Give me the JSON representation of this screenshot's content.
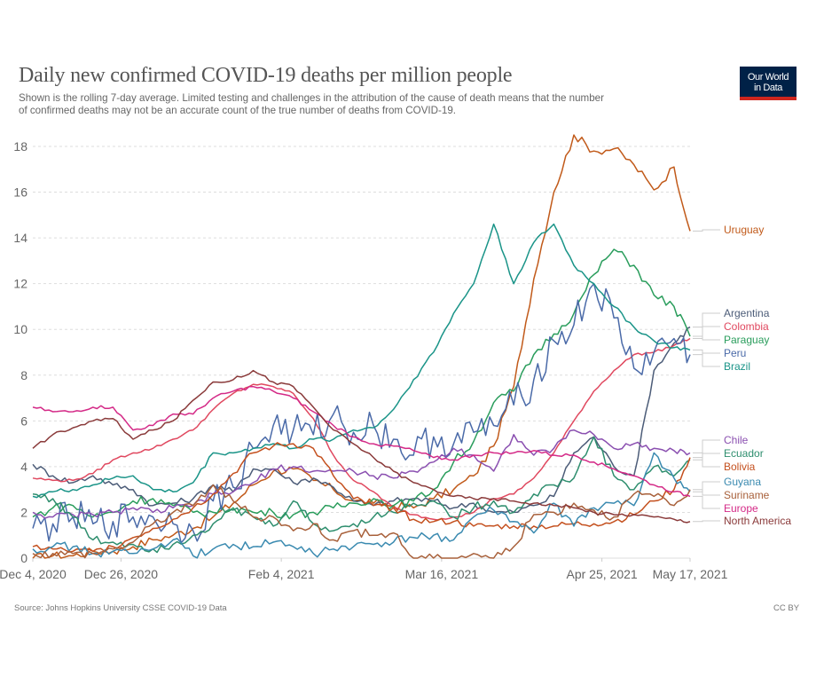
{
  "header": {
    "title": "Daily new confirmed COVID-19 deaths per million people",
    "subtitle_line1": "Shown is the rolling 7-day average. Limited testing and challenges in the attribution of the cause of death means that the number",
    "subtitle_line2": "of confirmed deaths may not be an accurate count of the true number of deaths from COVID-19.",
    "logo_line1": "Our World",
    "logo_line2": "in Data"
  },
  "footer": {
    "source": "Source: Johns Hopkins University CSSE COVID-19 Data",
    "license": "CC BY"
  },
  "chart_data": {
    "type": "line",
    "title": "Daily new confirmed COVID-19 deaths per million people",
    "xlabel": "",
    "ylabel": "",
    "x_unit": "days since Dec 4, 2020",
    "xlim": [
      0,
      164
    ],
    "ylim": [
      0,
      18
    ],
    "grid": "horizontal dashed",
    "yticks": [
      0,
      2,
      4,
      6,
      8,
      10,
      12,
      14,
      16,
      18
    ],
    "xticks": [
      {
        "day": 0,
        "label": "Dec 4, 2020"
      },
      {
        "day": 22,
        "label": "Dec 26, 2020"
      },
      {
        "day": 62,
        "label": "Feb 4, 2021"
      },
      {
        "day": 102,
        "label": "Mar 16, 2021"
      },
      {
        "day": 142,
        "label": "Apr 25, 2021"
      },
      {
        "day": 164,
        "label": "May 17, 2021"
      }
    ],
    "legend": "right (end-of-line labels)",
    "x": [
      0,
      5,
      10,
      15,
      20,
      25,
      30,
      35,
      40,
      45,
      50,
      55,
      60,
      65,
      70,
      75,
      80,
      85,
      90,
      95,
      100,
      105,
      110,
      115,
      120,
      125,
      130,
      135,
      140,
      145,
      150,
      155,
      160,
      164
    ],
    "series": [
      {
        "name": "Uruguay",
        "color": "#c15a1a",
        "values": [
          0.0,
          0.1,
          0.1,
          0.3,
          0.3,
          0.5,
          0.8,
          1.0,
          1.3,
          1.8,
          2.4,
          3.2,
          3.8,
          3.9,
          3.4,
          3.0,
          2.5,
          2.4,
          2.3,
          2.2,
          2.6,
          3.0,
          3.6,
          4.9,
          7.5,
          12.2,
          16.0,
          18.5,
          17.8,
          17.9,
          17.2,
          16.1,
          17.1,
          14.3
        ]
      },
      {
        "name": "Argentina",
        "color": "#4c5c78",
        "values": [
          4.1,
          3.6,
          3.3,
          3.6,
          3.2,
          3.0,
          2.3,
          2.4,
          2.6,
          3.2,
          2.9,
          3.9,
          3.9,
          3.3,
          3.5,
          3.1,
          2.5,
          2.3,
          2.5,
          2.6,
          2.5,
          2.2,
          2.4,
          2.0,
          2.0,
          2.3,
          2.7,
          4.6,
          5.3,
          4.0,
          3.6,
          8.2,
          9.4,
          10.1
        ]
      },
      {
        "name": "Colombia",
        "color": "#e0485f",
        "values": [
          3.5,
          3.4,
          3.4,
          3.7,
          4.3,
          4.6,
          4.8,
          5.2,
          5.6,
          6.5,
          7.2,
          7.6,
          7.5,
          7.2,
          6.1,
          4.5,
          3.4,
          2.9,
          2.2,
          1.9,
          1.7,
          1.8,
          2.0,
          2.6,
          2.8,
          3.5,
          4.6,
          6.0,
          7.3,
          8.2,
          8.9,
          9.0,
          9.3,
          9.6
        ]
      },
      {
        "name": "Paraguay",
        "color": "#2a9d5c",
        "values": [
          1.8,
          2.2,
          2.3,
          1.8,
          2.0,
          2.5,
          2.6,
          2.3,
          2.0,
          2.0,
          2.2,
          2.0,
          2.0,
          1.9,
          2.0,
          2.2,
          2.4,
          2.6,
          2.3,
          2.5,
          3.0,
          4.2,
          5.1,
          6.8,
          7.3,
          8.9,
          9.8,
          10.7,
          12.4,
          13.5,
          12.8,
          11.5,
          11.0,
          9.7
        ]
      },
      {
        "name": "Peru",
        "color": "#4a6aa8",
        "values": [
          1.3,
          1.5,
          1.8,
          1.5,
          1.6,
          1.8,
          1.8,
          1.5,
          1.2,
          2.5,
          3.1,
          4.8,
          5.8,
          5.6,
          5.4,
          6.3,
          5.5,
          5.8,
          5.2,
          4.5,
          5.3,
          5.0,
          5.5,
          5.8,
          6.7,
          7.8,
          9.5,
          10.2,
          12.0,
          10.5,
          8.3,
          9.0,
          9.6,
          8.9
        ]
      },
      {
        "name": "Brazil",
        "color": "#1a9488",
        "values": [
          2.7,
          2.9,
          3.0,
          3.2,
          3.5,
          3.6,
          3.0,
          2.9,
          3.3,
          4.6,
          4.6,
          4.8,
          5.0,
          4.8,
          5.2,
          5.2,
          5.6,
          5.7,
          6.5,
          7.8,
          9.0,
          10.7,
          12.0,
          14.6,
          12.0,
          13.8,
          14.6,
          12.8,
          12.0,
          11.0,
          10.1,
          9.5,
          9.2,
          9.1
        ]
      },
      {
        "name": "Chile",
        "color": "#8a4fb0",
        "values": [
          2.0,
          1.8,
          1.9,
          1.9,
          2.0,
          2.2,
          2.0,
          2.2,
          2.3,
          2.8,
          2.9,
          3.3,
          3.9,
          4.0,
          3.8,
          3.8,
          3.8,
          3.6,
          3.5,
          3.8,
          4.2,
          4.8,
          4.5,
          3.8,
          5.4,
          4.5,
          4.8,
          5.6,
          5.4,
          4.8,
          5.0,
          4.8,
          4.7,
          4.6
        ]
      },
      {
        "name": "Ecuador",
        "color": "#2e8e6e",
        "values": [
          2.8,
          2.6,
          1.8,
          0.8,
          0.7,
          0.6,
          0.4,
          0.6,
          1.0,
          1.5,
          2.1,
          1.8,
          1.4,
          2.5,
          1.5,
          1.2,
          1.5,
          1.8,
          2.0,
          2.4,
          2.5,
          1.8,
          2.2,
          2.5,
          2.0,
          2.8,
          3.2,
          3.5,
          5.3,
          3.6,
          3.0,
          4.0,
          3.6,
          4.3
        ]
      },
      {
        "name": "Bolivia",
        "color": "#c4501e",
        "values": [
          0.5,
          0.4,
          0.3,
          0.3,
          0.5,
          0.9,
          1.3,
          1.7,
          2.2,
          2.8,
          3.7,
          4.6,
          4.9,
          5.0,
          4.8,
          3.6,
          2.6,
          2.3,
          2.2,
          1.7,
          1.6,
          1.6,
          1.4,
          1.4,
          1.4,
          1.4,
          1.4,
          1.5,
          1.5,
          1.6,
          1.9,
          2.5,
          3.0,
          4.4
        ]
      },
      {
        "name": "Guyana",
        "color": "#3a8ab0",
        "values": [
          0.4,
          0.5,
          0.5,
          0.2,
          0.3,
          0.2,
          0.4,
          0.8,
          0.1,
          0.4,
          0.6,
          0.5,
          0.7,
          0.5,
          0.2,
          0.4,
          0.5,
          0.6,
          0.7,
          0.9,
          1.0,
          0.8,
          1.8,
          2.1,
          1.6,
          1.1,
          2.4,
          1.4,
          2.2,
          2.4,
          2.3,
          4.6,
          3.5,
          2.9
        ]
      },
      {
        "name": "Suriname",
        "color": "#a8603a",
        "values": [
          0.2,
          0.2,
          0.2,
          0.2,
          0.4,
          0.7,
          1.5,
          2.0,
          2.3,
          3.2,
          2.5,
          1.8,
          1.8,
          1.2,
          1.5,
          0.8,
          1.2,
          1.0,
          1.1,
          0.0,
          0.0,
          0.0,
          0.2,
          0.0,
          0.5,
          1.9,
          2.0,
          2.4,
          2.1,
          1.8,
          2.8,
          2.7,
          2.3,
          3.0
        ]
      },
      {
        "name": "Europe",
        "color": "#d42a87",
        "values": [
          6.6,
          6.4,
          6.4,
          6.6,
          6.6,
          5.6,
          5.8,
          6.3,
          6.3,
          7.0,
          7.3,
          7.5,
          7.3,
          7.0,
          6.4,
          5.8,
          5.3,
          5.0,
          4.9,
          4.7,
          4.4,
          4.3,
          4.5,
          4.6,
          4.6,
          4.7,
          4.5,
          4.5,
          4.2,
          3.9,
          3.6,
          3.2,
          2.9,
          2.7
        ]
      },
      {
        "name": "North America",
        "color": "#8a3a3a",
        "values": [
          4.8,
          5.4,
          5.7,
          6.0,
          6.1,
          5.2,
          5.6,
          6.0,
          6.9,
          7.7,
          7.8,
          8.2,
          7.7,
          7.5,
          6.6,
          5.6,
          5.0,
          4.4,
          3.8,
          3.3,
          3.0,
          2.7,
          2.6,
          2.6,
          2.5,
          2.4,
          2.3,
          2.2,
          2.0,
          1.9,
          1.9,
          1.8,
          1.7,
          1.6
        ]
      }
    ],
    "labels_order": [
      "Uruguay",
      "Argentina",
      "Colombia",
      "Paraguay",
      "Peru",
      "Brazil",
      "Chile",
      "Ecuador",
      "Bolivia",
      "Guyana",
      "Suriname",
      "Europe",
      "North America"
    ]
  }
}
